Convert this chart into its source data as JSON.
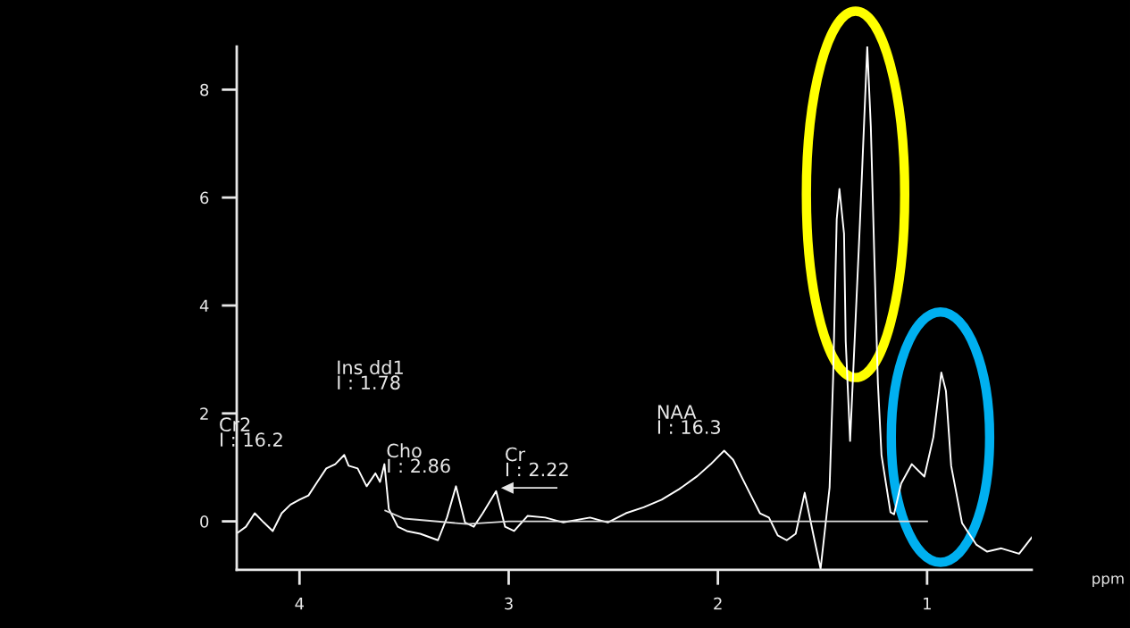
{
  "chart_data": {
    "type": "line",
    "xlabel": "ppm",
    "xlim": [
      4.3,
      0.5
    ],
    "xticks": [
      4,
      3,
      2,
      1
    ],
    "ylim": [
      -0.9,
      8.8
    ],
    "yticks": [
      0,
      2,
      4,
      6,
      8
    ],
    "grid": false,
    "legend": false,
    "marker": "none",
    "line_style": "solid",
    "series": [
      {
        "color": "#ffffff",
        "x": [
          4.299,
          4.256,
          4.214,
          4.171,
          4.128,
          4.085,
          4.043,
          4.0,
          3.957,
          3.915,
          3.872,
          3.829,
          3.786,
          3.765,
          3.722,
          3.679,
          3.637,
          3.615,
          3.594,
          3.573,
          3.53,
          3.487,
          3.423,
          3.338,
          3.295,
          3.252,
          3.209,
          3.167,
          3.124,
          3.06,
          3.017,
          2.974,
          2.91,
          2.825,
          2.739,
          2.611,
          2.526,
          2.44,
          2.355,
          2.269,
          2.184,
          2.098,
          2.034,
          1.97,
          1.927,
          1.885,
          1.842,
          1.799,
          1.756,
          1.714,
          1.671,
          1.628,
          1.585,
          1.543,
          1.509,
          1.466,
          1.449,
          1.432,
          1.419,
          1.397,
          1.389,
          1.368,
          1.321,
          1.286,
          1.269,
          1.252,
          1.235,
          1.218,
          1.175,
          1.158,
          1.124,
          1.073,
          1.013,
          0.97,
          0.932,
          0.91,
          0.885,
          0.833,
          0.765,
          0.714,
          0.645,
          0.56,
          0.5
        ],
        "values": [
          -0.22,
          -0.1,
          0.15,
          -0.02,
          -0.18,
          0.15,
          0.31,
          0.4,
          0.48,
          0.73,
          0.98,
          1.06,
          1.23,
          1.03,
          0.98,
          0.65,
          0.89,
          0.73,
          1.06,
          0.23,
          -0.1,
          -0.18,
          -0.23,
          -0.35,
          0.07,
          0.65,
          -0.02,
          -0.1,
          0.15,
          0.56,
          -0.1,
          -0.18,
          0.1,
          0.07,
          -0.02,
          0.07,
          -0.02,
          0.15,
          0.26,
          0.4,
          0.6,
          0.84,
          1.06,
          1.31,
          1.14,
          0.81,
          0.48,
          0.15,
          0.07,
          -0.26,
          -0.35,
          -0.23,
          0.53,
          -0.26,
          -0.88,
          0.63,
          2.68,
          5.6,
          6.16,
          5.33,
          3.34,
          1.49,
          5.53,
          8.8,
          7.32,
          4.87,
          2.55,
          1.23,
          0.17,
          0.13,
          0.7,
          1.06,
          0.83,
          1.56,
          2.76,
          2.42,
          1.03,
          -0.03,
          -0.43,
          -0.56,
          -0.5,
          -0.6,
          -0.3
        ]
      },
      {
        "color": "#dddddd",
        "x": [
          3.59,
          3.5,
          3.2,
          3.0,
          1.0
        ],
        "values": [
          0.2,
          0.05,
          -0.05,
          0.0,
          0.0
        ]
      }
    ],
    "annotations": [
      "Cr2\nI : 16.2",
      "Ins dd1\nI : 1.78",
      "Cho\nI : 2.86",
      "Cr\nI : 2.22",
      "NAA\nI : 16.3"
    ]
  }
}
